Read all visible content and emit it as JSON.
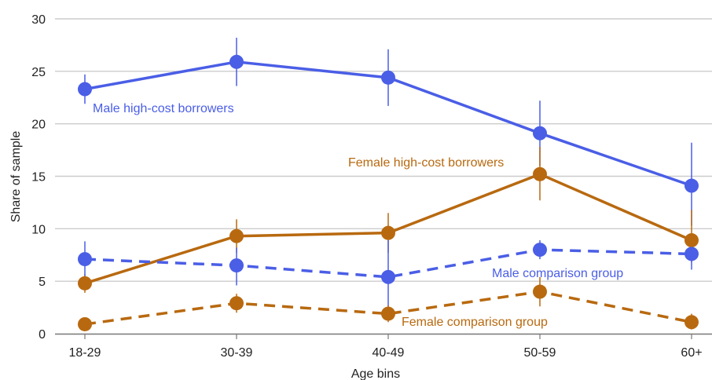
{
  "chart_data": {
    "type": "line",
    "title": "",
    "xlabel": "Age bins",
    "ylabel": "Share of sample",
    "categories": [
      "18-29",
      "30-39",
      "40-49",
      "50-59",
      "60+"
    ],
    "ylim": [
      0,
      30
    ],
    "yticks": [
      0,
      5,
      10,
      15,
      20,
      25,
      30
    ],
    "grid": "horizontal",
    "series": [
      {
        "name": "Male high-cost borrowers",
        "color": "#4a5ee6",
        "dash": "solid",
        "values": [
          23.3,
          25.9,
          24.4,
          19.1,
          14.1
        ],
        "err_low": [
          21.9,
          23.6,
          21.7,
          16.0,
          10.3
        ],
        "err_high": [
          24.7,
          28.2,
          27.1,
          22.2,
          18.2
        ]
      },
      {
        "name": "Female high-cost borrowers",
        "color": "#b8690f",
        "dash": "solid",
        "values": [
          4.8,
          9.3,
          9.6,
          15.2,
          8.9
        ],
        "err_low": [
          3.9,
          7.7,
          7.7,
          12.7,
          6.8
        ],
        "err_high": [
          5.7,
          10.9,
          11.5,
          17.8,
          11.8
        ]
      },
      {
        "name": "Male comparison group",
        "color": "#4a5ee6",
        "dash": "dashed",
        "values": [
          7.1,
          6.5,
          5.4,
          8.0,
          7.6
        ],
        "err_low": [
          5.5,
          4.6,
          1.8,
          7.1,
          6.1
        ],
        "err_high": [
          8.8,
          8.2,
          8.9,
          8.9,
          9.0
        ]
      },
      {
        "name": "Female comparison group",
        "color": "#b8690f",
        "dash": "dashed",
        "values": [
          0.9,
          2.9,
          1.9,
          4.0,
          1.1
        ],
        "err_low": [
          0.4,
          2.0,
          1.1,
          2.6,
          0.4
        ],
        "err_high": [
          1.4,
          3.8,
          2.7,
          5.4,
          1.9
        ]
      }
    ]
  }
}
